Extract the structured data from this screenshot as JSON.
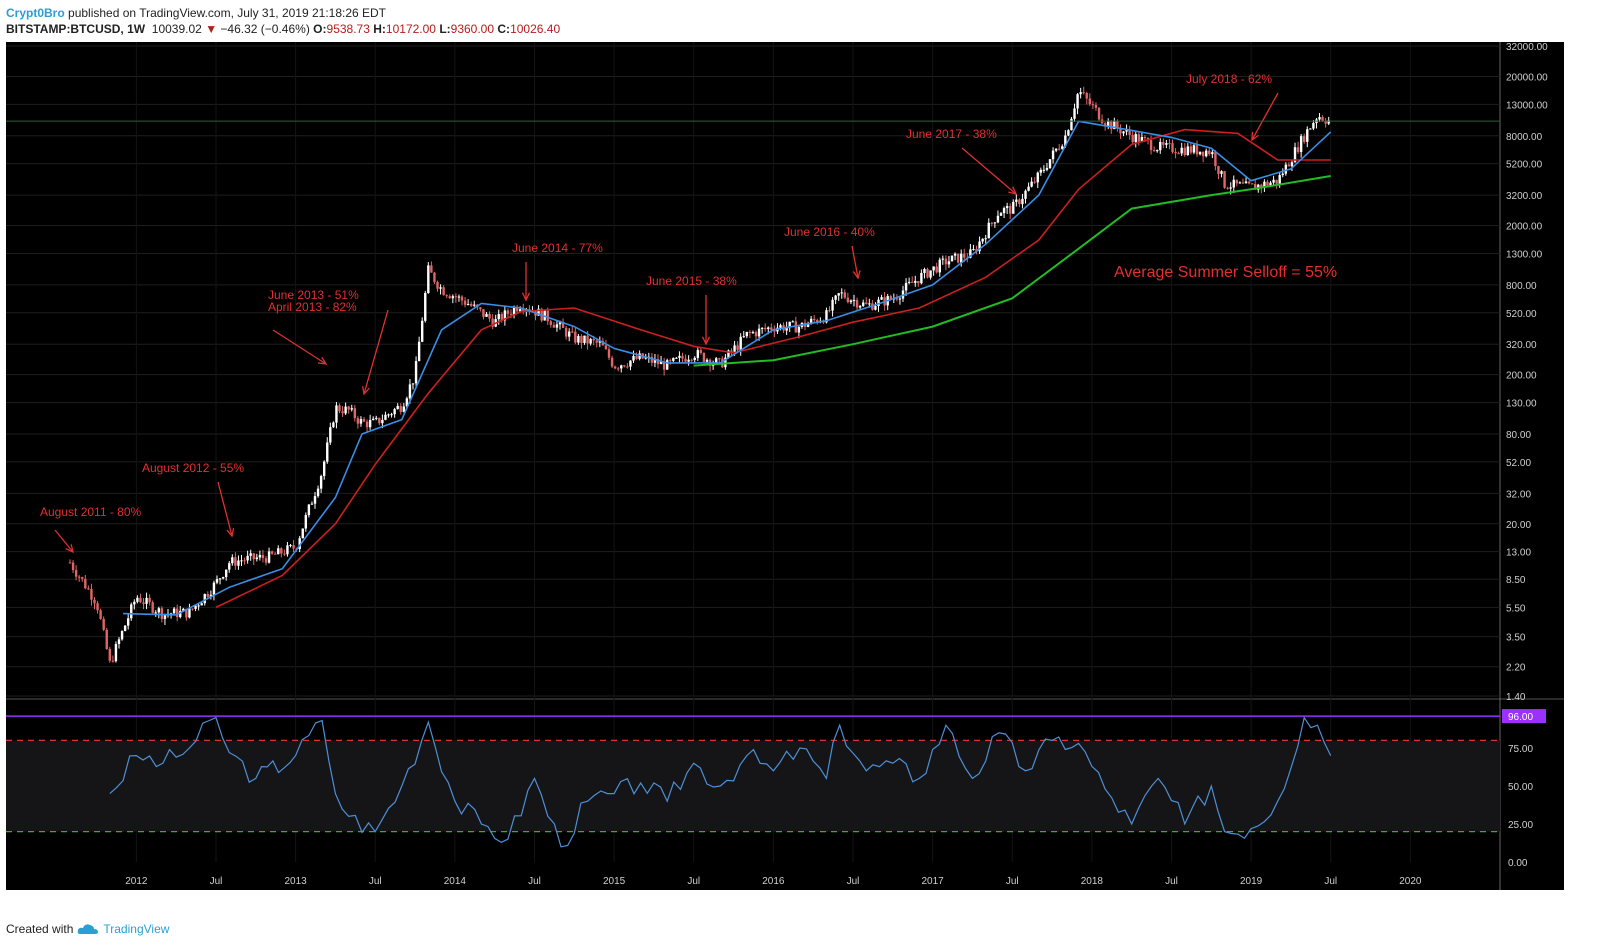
{
  "header": {
    "author": "Crypt0Bro",
    "published": "published on TradingView.com, July 31, 2019 21:18:26 EDT",
    "symbol": "BITSTAMP:BTCUSD, 1W",
    "last": "10039.02",
    "change": "−46.32 (−0.46%)",
    "o_label": "O:",
    "o": "9538.73",
    "h_label": "H:",
    "h": "10172.00",
    "l_label": "L:",
    "l": "9360.00",
    "c_label": "C:",
    "c": "10026.40"
  },
  "footer": {
    "created": "Created with",
    "brand": "TradingView",
    "icon": "tradingview-cloud-icon"
  },
  "colors": {
    "background": "#000000",
    "candle_up": "#ffffff",
    "candle_down": "#e06666",
    "ema_short": "#3a8ee6",
    "ema_mid": "#cc1f1f",
    "ema_long": "#22bb22",
    "rsi": "#4d8fd6",
    "annotation": "#e03030",
    "rsi_upper_line": "#9b30ff",
    "rsi_red_dash": "#e03030",
    "rsi_green_dash": "#22bb22"
  },
  "chart_data": [
    {
      "type": "line",
      "title": "BITSTAMP:BTCUSD, 1W",
      "y_scale": "log",
      "ylim": [
        1.4,
        32000
      ],
      "y_ticks": [
        "32000.00",
        "20000.00",
        "13000.00",
        "8000.00",
        "5200.00",
        "3200.00",
        "2000.00",
        "1300.00",
        "800.00",
        "520.00",
        "320.00",
        "200.00",
        "130.00",
        "80.00",
        "52.00",
        "32.00",
        "20.00",
        "13.00",
        "8.50",
        "5.50",
        "3.50",
        "2.20",
        "1.40"
      ],
      "x_ticks": [
        "2012",
        "Jul",
        "2013",
        "Jul",
        "2014",
        "Jul",
        "2015",
        "Jul",
        "2016",
        "Jul",
        "2017",
        "Jul",
        "2018",
        "Jul",
        "2019",
        "Jul",
        "2020"
      ],
      "price_series": {
        "name": "",
        "x": [
          "2011-08",
          "2011-10",
          "2011-11",
          "2012-01",
          "2012-03",
          "2012-05",
          "2012-07",
          "2012-08",
          "2012-09",
          "2012-11",
          "2013-01",
          "2013-03",
          "2013-04",
          "2013-05",
          "2013-06",
          "2013-07",
          "2013-09",
          "2013-10",
          "2013-11",
          "2013-12",
          "2014-02",
          "2014-04",
          "2014-06",
          "2014-08",
          "2014-10",
          "2014-12",
          "2015-01",
          "2015-03",
          "2015-05",
          "2015-07",
          "2015-09",
          "2015-11",
          "2016-01",
          "2016-03",
          "2016-05",
          "2016-06",
          "2016-08",
          "2016-10",
          "2016-12",
          "2017-02",
          "2017-04",
          "2017-06",
          "2017-07",
          "2017-09",
          "2017-11",
          "2017-12",
          "2018-02",
          "2018-04",
          "2018-06",
          "2018-08",
          "2018-10",
          "2018-11",
          "2019-01",
          "2019-03",
          "2019-05",
          "2019-06",
          "2019-07"
        ],
        "values": [
          11,
          6,
          2.3,
          6.5,
          5,
          5.1,
          8,
          11,
          11.5,
          12,
          14,
          45,
          120,
          115,
          95,
          95,
          125,
          200,
          1000,
          750,
          600,
          450,
          600,
          480,
          350,
          320,
          230,
          260,
          230,
          280,
          235,
          370,
          420,
          420,
          500,
          700,
          580,
          650,
          900,
          1150,
          1300,
          2500,
          2600,
          4300,
          8000,
          16000,
          10000,
          8000,
          6700,
          6500,
          6300,
          3800,
          3600,
          4000,
          8000,
          11000,
          10000
        ]
      },
      "ema_short": {
        "x": [
          "2011-12",
          "2012-04",
          "2012-08",
          "2012-12",
          "2013-04",
          "2013-06",
          "2013-09",
          "2013-12",
          "2014-03",
          "2014-06",
          "2014-10",
          "2015-01",
          "2015-05",
          "2015-09",
          "2016-01",
          "2016-05",
          "2016-09",
          "2017-01",
          "2017-05",
          "2017-09",
          "2017-12",
          "2018-03",
          "2018-07",
          "2018-10",
          "2019-01",
          "2019-04",
          "2019-07"
        ],
        "values": [
          5,
          4.9,
          7.5,
          10,
          30,
          80,
          100,
          400,
          600,
          560,
          420,
          300,
          240,
          240,
          400,
          460,
          600,
          800,
          1500,
          3200,
          10000,
          9000,
          7800,
          6600,
          4000,
          4800,
          8500
        ]
      },
      "ema_mid": {
        "x": [
          "2012-07",
          "2012-12",
          "2013-04",
          "2013-07",
          "2013-11",
          "2014-03",
          "2014-06",
          "2014-10",
          "2015-03",
          "2015-07",
          "2015-10",
          "2016-03",
          "2016-07",
          "2016-12",
          "2017-05",
          "2017-09",
          "2017-12",
          "2018-04",
          "2018-08",
          "2018-12",
          "2019-03",
          "2019-07"
        ],
        "values": [
          5.5,
          9,
          20,
          50,
          150,
          400,
          530,
          560,
          400,
          310,
          280,
          360,
          450,
          560,
          900,
          1600,
          3500,
          7000,
          8800,
          8300,
          5500,
          5500
        ]
      },
      "ema_long": {
        "x": [
          "2015-07",
          "2016-01",
          "2016-07",
          "2017-01",
          "2017-07",
          "2017-12",
          "2018-04",
          "2018-10",
          "2019-01",
          "2019-07"
        ],
        "values": [
          230,
          250,
          320,
          420,
          650,
          1400,
          2600,
          3200,
          3500,
          4300
        ]
      },
      "annotations": [
        {
          "text": "August 2011 - 80%",
          "at": "2011-08"
        },
        {
          "text": "August 2012 - 55%",
          "at": "2012-08"
        },
        {
          "text": "June 2013 - 51%",
          "at": "2013-06"
        },
        {
          "text": "April 2013 - 82%",
          "at": "2013-04"
        },
        {
          "text": "June 2014 - 77%",
          "at": "2014-06"
        },
        {
          "text": "June 2015 - 38%",
          "at": "2015-06"
        },
        {
          "text": "June 2016 - 40%",
          "at": "2016-06"
        },
        {
          "text": "June 2017 - 38%",
          "at": "2017-06"
        },
        {
          "text": "July 2018 - 62%",
          "at": "2018-07"
        },
        {
          "text": "Average Summer Selloff = 55%",
          "at": "2018-01"
        }
      ]
    },
    {
      "type": "line",
      "ylim": [
        0,
        100
      ],
      "y_ticks": [
        "96.00",
        "75.00",
        "50.00",
        "25.00",
        "0.00"
      ],
      "upper_line": 96,
      "red_dash": 80,
      "green_dash": 20,
      "rsi": {
        "x": [
          "2011-11",
          "2012-01",
          "2012-03",
          "2012-05",
          "2012-07",
          "2012-08",
          "2012-10",
          "2013-01",
          "2013-03",
          "2013-04",
          "2013-05",
          "2013-07",
          "2013-09",
          "2013-11",
          "2014-01",
          "2014-03",
          "2014-05",
          "2014-07",
          "2014-09",
          "2014-11",
          "2015-01",
          "2015-03",
          "2015-05",
          "2015-07",
          "2015-09",
          "2015-11",
          "2016-01",
          "2016-03",
          "2016-05",
          "2016-06",
          "2016-08",
          "2016-10",
          "2016-12",
          "2017-02",
          "2017-04",
          "2017-06",
          "2017-08",
          "2017-10",
          "2017-12",
          "2018-02",
          "2018-04",
          "2018-06",
          "2018-08",
          "2018-10",
          "2018-11",
          "2019-01",
          "2019-03",
          "2019-05",
          "2019-06",
          "2019-07"
        ],
        "values": [
          45,
          70,
          65,
          75,
          95,
          72,
          55,
          70,
          93,
          45,
          30,
          20,
          50,
          92,
          40,
          25,
          15,
          55,
          10,
          40,
          45,
          52,
          40,
          65,
          50,
          70,
          60,
          75,
          55,
          90,
          60,
          65,
          55,
          90,
          55,
          85,
          60,
          80,
          78,
          48,
          25,
          55,
          25,
          50,
          20,
          22,
          40,
          95,
          90,
          70
        ]
      }
    }
  ]
}
